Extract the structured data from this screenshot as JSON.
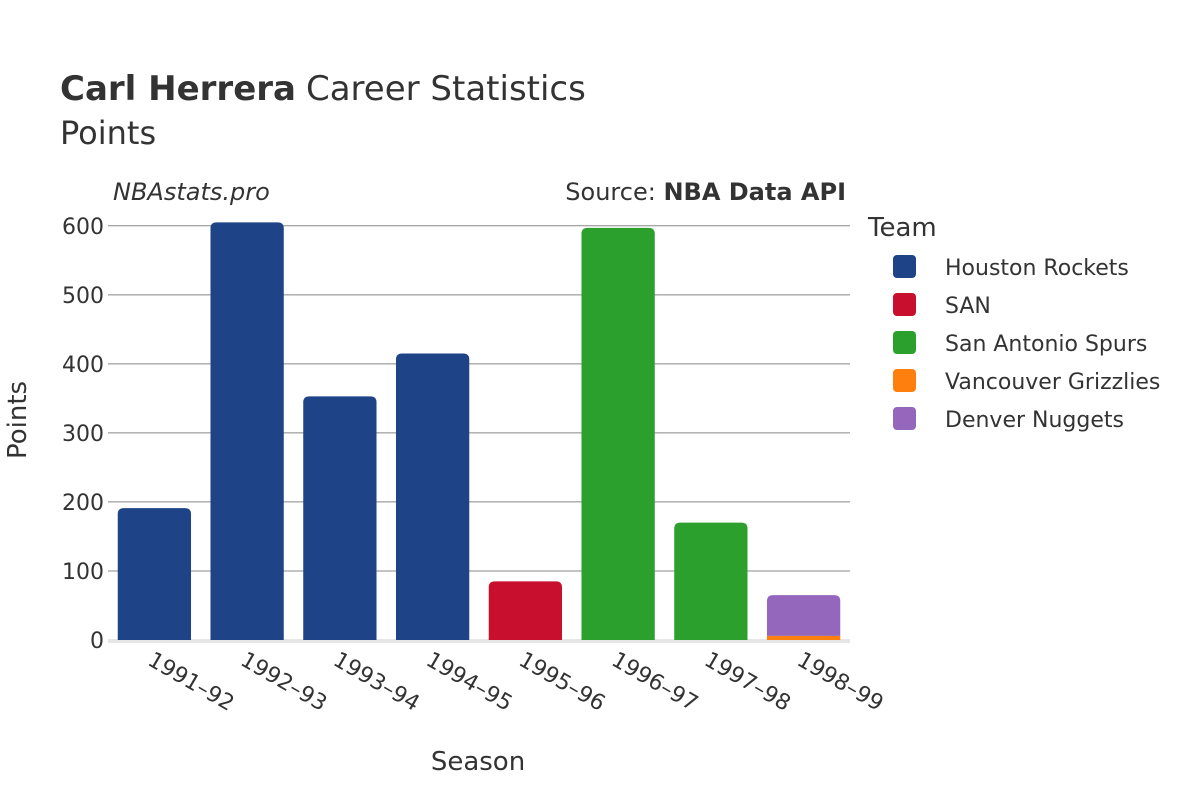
{
  "header": {
    "player": "Carl Herrera",
    "title_rest": "Career Statistics",
    "subtitle": "Points"
  },
  "watermark": "NBAstats.pro",
  "source": {
    "prefix": "Source: ",
    "name": "NBA Data API"
  },
  "legend": {
    "title": "Team"
  },
  "chart_data": {
    "type": "bar",
    "stacked": true,
    "xlabel": "Season",
    "ylabel": "Points",
    "ylim": [
      0,
      620
    ],
    "yticks": [
      0,
      100,
      200,
      300,
      400,
      500,
      600
    ],
    "grid": true,
    "legend_position": "right",
    "categories": [
      "1991–92",
      "1992–93",
      "1993–94",
      "1994–95",
      "1995–96",
      "1996–97",
      "1997–98",
      "1998–99"
    ],
    "series": [
      {
        "name": "Houston Rockets",
        "color": "#1f4387",
        "values": [
          191,
          605,
          353,
          415,
          0,
          0,
          0,
          0
        ]
      },
      {
        "name": "SAN",
        "color": "#c8102e",
        "values": [
          0,
          0,
          0,
          0,
          85,
          0,
          0,
          0
        ]
      },
      {
        "name": "San Antonio Spurs",
        "color": "#2ca02c",
        "values": [
          0,
          0,
          0,
          0,
          0,
          597,
          170,
          0
        ]
      },
      {
        "name": "Vancouver Grizzlies",
        "color": "#ff7f0e",
        "values": [
          0,
          0,
          0,
          0,
          0,
          0,
          0,
          6
        ]
      },
      {
        "name": "Denver Nuggets",
        "color": "#9467bd",
        "values": [
          0,
          0,
          0,
          0,
          0,
          0,
          0,
          59
        ]
      }
    ]
  }
}
